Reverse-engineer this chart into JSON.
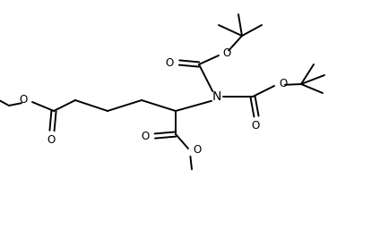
{
  "bg_color": "#ffffff",
  "line_color": "#000000",
  "line_width": 1.4,
  "font_size": 8.5,
  "figsize": [
    4.24,
    2.66
  ],
  "dpi": 100,
  "xlim": [
    0,
    10.6
  ],
  "ylim": [
    0,
    6.65
  ]
}
